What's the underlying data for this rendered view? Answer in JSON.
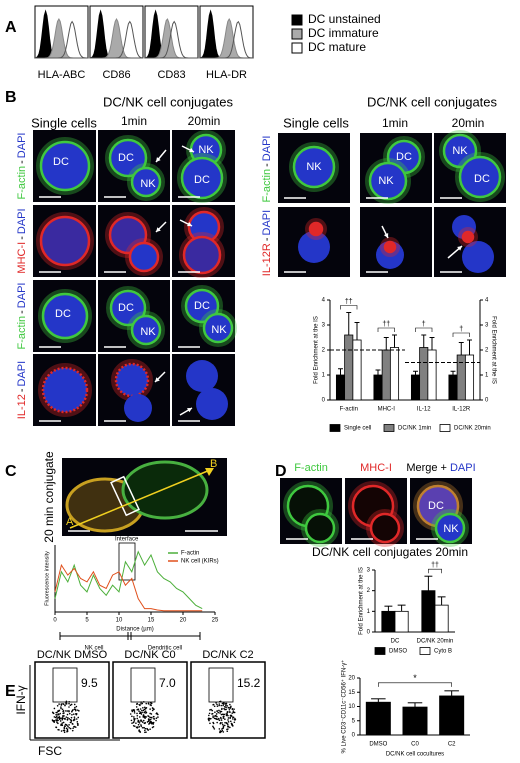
{
  "panels": {
    "A": {
      "label": "A",
      "markers": [
        "HLA-ABC",
        "CD86",
        "CD83",
        "HLA-DR"
      ],
      "legend": [
        {
          "name": "DC unstained",
          "color": "#000000"
        },
        {
          "name": "DC immature",
          "color": "#aaaaaa"
        },
        {
          "name": "DC mature",
          "color": "#ffffff"
        }
      ]
    },
    "B": {
      "label": "B",
      "left": {
        "single": "Single cells",
        "conjugates": "DC/NK cell conjugates",
        "times": [
          "1min",
          "20min"
        ],
        "rows": [
          [
            "F-actin",
            "-",
            "DAPI"
          ],
          [
            "MHC-I",
            "-",
            "DAPI"
          ],
          [
            "F-actin",
            "-",
            "DAPI"
          ],
          [
            "IL-12",
            "-",
            "DAPI"
          ]
        ],
        "labeled_images": [
          [
            "DC"
          ],
          [
            "DC",
            "NK"
          ],
          [
            "NK",
            "DC"
          ],
          [
            "DC"
          ],
          [
            "DC",
            "NK"
          ],
          [
            "DC",
            "NK"
          ]
        ]
      },
      "right": {
        "single": "Single cells",
        "conjugates": "DC/NK cell conjugates",
        "times": [
          "1min",
          "20min"
        ],
        "rows": [
          [
            "F-actin",
            "-",
            "DAPI"
          ],
          [
            "IL-12R",
            "-",
            "DAPI"
          ]
        ],
        "labeled_images": [
          [
            "NK"
          ],
          [
            "DC",
            "NK"
          ],
          [
            "NK",
            "DC"
          ]
        ]
      },
      "chart": {
        "type": "bar",
        "ylabel": "Fold Enrichment at the IS",
        "categories": [
          "F-actin",
          "MHC-I",
          "IL-12",
          "IL-12R"
        ],
        "series": [
          {
            "name": "Single cell",
            "color": "#000000",
            "values": [
              1.0,
              1.0,
              1.0,
              1.0
            ],
            "errors": [
              0.25,
              0.2,
              0.15,
              0.15
            ]
          },
          {
            "name": "DC/NK 1min",
            "color": "#808080",
            "values": [
              2.6,
              2.0,
              2.1,
              1.8
            ],
            "errors": [
              0.9,
              0.5,
              0.5,
              0.5
            ]
          },
          {
            "name": "DC/NK 20min",
            "color": "#ffffff",
            "values": [
              2.4,
              2.1,
              2.0,
              1.8
            ],
            "errors": [
              0.7,
              0.5,
              0.5,
              0.6
            ]
          }
        ],
        "ylim": [
          0,
          4
        ],
        "yticks": [
          0,
          1,
          2,
          3,
          4
        ],
        "significance": [
          "††",
          "††",
          "†",
          "†"
        ],
        "reference_lines": [
          2,
          1.5
        ]
      }
    },
    "C": {
      "label": "C",
      "image_title": "20 min conjugate",
      "line_start": "A",
      "line_end": "B",
      "chart": {
        "type": "line",
        "xlabel": "Distance (µm)",
        "ylabel": "Fluorescence intensity",
        "annotation": "Interface",
        "x": [
          0,
          1,
          2,
          3,
          4,
          5,
          6,
          7,
          8,
          9,
          10,
          11,
          12,
          13,
          14,
          15,
          16,
          17,
          18,
          19,
          20,
          21,
          22,
          23
        ],
        "series": [
          {
            "name": "F-actin",
            "color": "#4caf3a",
            "values": [
              20,
              60,
              45,
              70,
              40,
              30,
              55,
              35,
              25,
              40,
              30,
              75,
              60,
              90,
              70,
              85,
              60,
              50,
              45,
              35,
              30,
              20,
              10,
              5
            ]
          },
          {
            "name": "NK cell (KIRs)",
            "color": "#e0501c",
            "values": [
              30,
              70,
              55,
              65,
              50,
              45,
              60,
              40,
              35,
              55,
              60,
              40,
              50,
              20,
              5,
              5,
              3,
              2,
              2,
              2,
              2,
              2,
              2,
              2
            ]
          }
        ],
        "xlim": [
          0,
          25
        ],
        "xticks": [
          0,
          5,
          10,
          15,
          20,
          25
        ],
        "ylim": [
          0,
          100
        ]
      },
      "schematic": [
        "NK cell",
        "Dendritic cell"
      ]
    },
    "D": {
      "label": "D",
      "columns": [
        [
          "F-actin"
        ],
        [
          "MHC-I"
        ],
        [
          "Merge",
          "+",
          "DAPI"
        ]
      ],
      "cell_labels": [
        "DC",
        "NK"
      ],
      "title": "DC/NK cell conjugates 20min",
      "chart": {
        "type": "bar",
        "ylabel": "Fold Enrichment at the IS",
        "categories": [
          "DC",
          "DC/NK 20min"
        ],
        "series": [
          {
            "name": "DMSO",
            "color": "#000000",
            "values": [
              1.0,
              2.0
            ],
            "errors": [
              0.25,
              0.7
            ]
          },
          {
            "name": "Cyto B",
            "color": "#ffffff",
            "values": [
              1.0,
              1.3
            ],
            "errors": [
              0.3,
              0.4
            ]
          }
        ],
        "ylim": [
          0,
          3
        ],
        "yticks": [
          0,
          1,
          2,
          3
        ],
        "significance": [
          null,
          "††"
        ]
      }
    },
    "E": {
      "label": "E",
      "plots": [
        {
          "title": "DC/NK DMSO",
          "percent": "9.5"
        },
        {
          "title": "DC/NK C0",
          "percent": "7.0"
        },
        {
          "title": "DC/NK C2",
          "percent": "15.2"
        }
      ],
      "ylabel": "IFN-γ",
      "xlabel": "FSC",
      "chart": {
        "type": "bar",
        "ylabel": "% Live CD3⁻CD11c⁻CD56⁺ IFN-γ⁺",
        "xlabel": "DC/NK cell cocultures",
        "categories": [
          "DMSO",
          "C0",
          "C2"
        ],
        "series": [
          {
            "color": "#000000",
            "values": [
              11.5,
              9.8,
              13.7
            ],
            "errors": [
              1.2,
              1.5,
              1.8
            ]
          }
        ],
        "ylim": [
          0,
          20
        ],
        "yticks": [
          0,
          5,
          10,
          15,
          20
        ],
        "bracket_label": "*"
      }
    }
  }
}
